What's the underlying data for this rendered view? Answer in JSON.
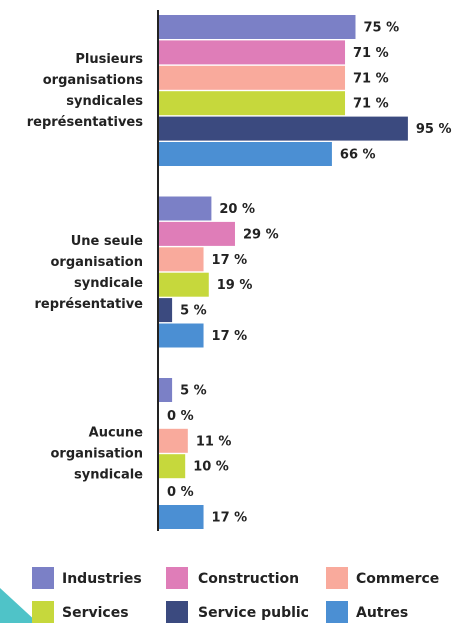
{
  "chart_data": {
    "type": "bar",
    "orientation": "horizontal",
    "categories": [
      "Plusieurs organisations syndicales représentatives",
      "Une seule organisation syndicale représentative",
      "Aucune organisation syndicale"
    ],
    "xlim": [
      0,
      100
    ],
    "series": [
      {
        "name": "Industries",
        "color": "#7b80c6",
        "values": [
          75,
          20,
          5
        ],
        "value_labels": [
          "75 %",
          "20 %",
          "5 %"
        ]
      },
      {
        "name": "Construction",
        "color": "#df7db8",
        "values": [
          71,
          29,
          0
        ],
        "value_labels": [
          "71 %",
          "29 %",
          "0 %"
        ]
      },
      {
        "name": "Commerce",
        "color": "#f9aa9c",
        "values": [
          71,
          17,
          11
        ],
        "value_labels": [
          "71 %",
          "17 %",
          "11 %"
        ]
      },
      {
        "name": "Services",
        "color": "#c6d83c",
        "values": [
          71,
          19,
          10
        ],
        "value_labels": [
          "71 %",
          "19 %",
          "10 %"
        ]
      },
      {
        "name": "Service public",
        "color": "#3b4a7f",
        "values": [
          95,
          5,
          0
        ],
        "value_labels": [
          "95 %",
          "5 %",
          "0 %"
        ]
      },
      {
        "name": "Autres",
        "color": "#4b8fd3",
        "values": [
          66,
          17,
          17
        ],
        "value_labels": [
          "66 %",
          "17 %",
          "17 %"
        ]
      }
    ],
    "legend": "bottom"
  }
}
